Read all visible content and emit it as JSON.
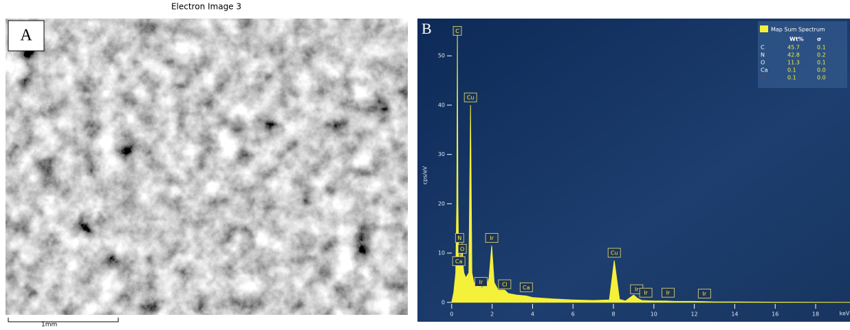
{
  "panel_a": {
    "label": "A",
    "title": "Electron Image 3",
    "scale_bar": "1mm"
  },
  "chart_data": {
    "type": "area",
    "panel_label": "B",
    "y_label": "cps/eV",
    "x_label": "keV",
    "color": "#f5f03a",
    "x": [
      0,
      0.1,
      0.2,
      0.25,
      0.28,
      0.31,
      0.35,
      0.39,
      0.42,
      0.45,
      0.52,
      0.55,
      0.6,
      0.7,
      0.85,
      0.93,
      1.0,
      1.1,
      1.3,
      1.5,
      1.74,
      1.85,
      1.98,
      2.1,
      2.3,
      2.62,
      2.8,
      3.2,
      3.69,
      4,
      5,
      6,
      7,
      7.8,
      8.04,
      8.3,
      8.6,
      8.9,
      9.0,
      9.2,
      9.4,
      10,
      10.6,
      11,
      12,
      13,
      14,
      16,
      19.7
    ],
    "values": [
      0,
      2,
      6,
      20,
      55,
      20,
      8,
      6,
      10,
      7,
      12,
      8,
      6,
      5,
      6,
      40,
      6,
      4,
      3.5,
      3,
      3.5,
      5,
      11.5,
      4,
      2.5,
      2.5,
      1.8,
      1.5,
      1.3,
      1,
      0.7,
      0.5,
      0.4,
      0.5,
      8.5,
      0.6,
      0.3,
      1.2,
      1.5,
      0.8,
      0.4,
      0.3,
      0.3,
      0.2,
      0.2,
      0.1,
      0.1,
      0.05,
      0
    ],
    "xlim": [
      -0.3,
      19.7
    ],
    "ylim": [
      -1,
      57
    ],
    "xticks": [
      0,
      2,
      4,
      6,
      8,
      10,
      12,
      14,
      16,
      18
    ],
    "yticks": [
      0,
      10,
      20,
      30,
      40,
      50
    ],
    "annotations": [
      {
        "text": "C",
        "x": 0.28,
        "y": 55
      },
      {
        "text": "Cu",
        "x": 0.93,
        "y": 41.5
      },
      {
        "text": "N",
        "x": 0.39,
        "y": 13
      },
      {
        "text": "O",
        "x": 0.52,
        "y": 10.8
      },
      {
        "text": "Ca",
        "x": 0.35,
        "y": 8.3
      },
      {
        "text": "Ir",
        "x": 1.98,
        "y": 13
      },
      {
        "text": "Ir",
        "x": 1.45,
        "y": 4.1
      },
      {
        "text": "Cl",
        "x": 2.62,
        "y": 3.6
      },
      {
        "text": "Ca",
        "x": 3.69,
        "y": 3
      },
      {
        "text": "Cu",
        "x": 8.04,
        "y": 10
      },
      {
        "text": "Ir",
        "x": 9.15,
        "y": 2.6
      },
      {
        "text": "Ir",
        "x": 9.6,
        "y": 1.9
      },
      {
        "text": "Ir",
        "x": 10.7,
        "y": 1.9
      },
      {
        "text": "Ir",
        "x": 12.5,
        "y": 1.7
      }
    ],
    "legend": {
      "title": "Map Sum Spectrum",
      "headers": [
        "Wt%",
        "σ"
      ],
      "rows": [
        [
          "C",
          "45.7",
          "0.1"
        ],
        [
          "N",
          "42.8",
          "0.2"
        ],
        [
          "O",
          "11.3",
          "0.1"
        ],
        [
          "Ca",
          "0.1",
          "0.0"
        ],
        [
          "Cl",
          "0.1",
          "0.0"
        ]
      ]
    }
  }
}
